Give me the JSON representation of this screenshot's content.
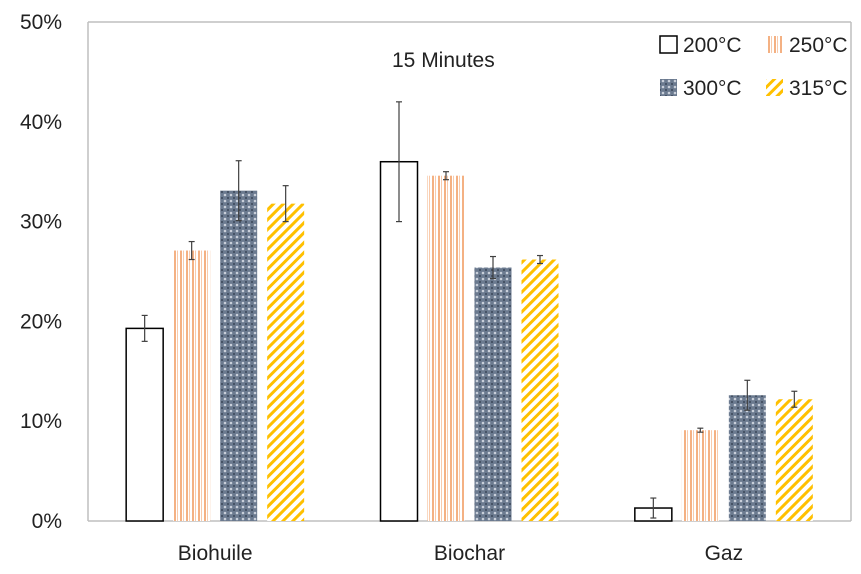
{
  "chart_data": {
    "type": "bar",
    "title": "",
    "annotation": "15 Minutes",
    "xlabel": "",
    "ylabel": "",
    "categories": [
      "Biohuile",
      "Biochar",
      "Gaz"
    ],
    "yticks": [
      "0%",
      "10%",
      "20%",
      "30%",
      "40%",
      "50%"
    ],
    "ylim": [
      0,
      50
    ],
    "grid": false,
    "legend_position": "top-right",
    "series": [
      {
        "name": "200°C",
        "pattern": "empty",
        "color": "#000000",
        "values": [
          19.3,
          36.0,
          1.3
        ],
        "errors": [
          1.3,
          6.0,
          1.0
        ]
      },
      {
        "name": "250°C",
        "pattern": "vertical-stripes",
        "color": "#f4b183",
        "values": [
          27.1,
          34.6,
          9.1
        ],
        "errors": [
          0.9,
          0.4,
          0.2
        ]
      },
      {
        "name": "300°C",
        "pattern": "dotted-grid",
        "color": "#44546a",
        "values": [
          33.1,
          25.4,
          12.6
        ],
        "errors": [
          3.0,
          1.1,
          1.5
        ]
      },
      {
        "name": "315°C",
        "pattern": "diagonal-stripes",
        "color": "#ffc000",
        "values": [
          31.8,
          26.2,
          12.2
        ],
        "errors": [
          1.8,
          0.4,
          0.8
        ]
      }
    ]
  }
}
